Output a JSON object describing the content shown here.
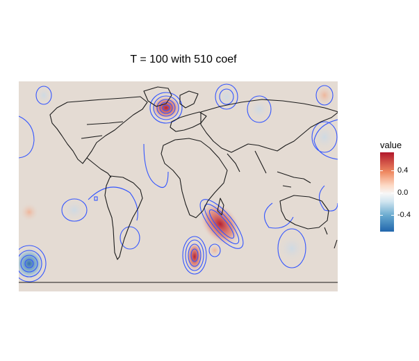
{
  "title": "T = 100 with 510 coef",
  "legend": {
    "title": "value",
    "ticks": [
      "0.4",
      "0.0",
      "-0.4"
    ]
  },
  "colors": {
    "background_fill": "#e4dbd3",
    "contour": "#3355ff",
    "coastline": "#1a1a1a",
    "high": "#b2182b",
    "mid": "#f7f7f7",
    "low": "#2166ac"
  }
}
